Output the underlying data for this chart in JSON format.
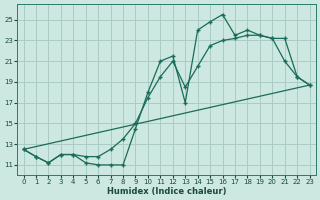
{
  "xlabel": "Humidex (Indice chaleur)",
  "bg_color": "#cce8e0",
  "grid_color": "#aaccc4",
  "line_color": "#1a6b5a",
  "xlim": [
    -0.5,
    23.5
  ],
  "ylim": [
    10.0,
    26.5
  ],
  "xticks": [
    0,
    1,
    2,
    3,
    4,
    5,
    6,
    7,
    8,
    9,
    10,
    11,
    12,
    13,
    14,
    15,
    16,
    17,
    18,
    19,
    20,
    21,
    22,
    23
  ],
  "yticks": [
    11,
    13,
    15,
    17,
    19,
    21,
    23,
    25
  ],
  "series1_x": [
    0,
    1,
    2,
    3,
    4,
    5,
    6,
    7,
    8,
    9,
    10,
    11,
    12,
    13,
    14,
    15,
    16,
    17,
    18,
    19,
    20,
    21,
    22,
    23
  ],
  "series1_y": [
    12.5,
    11.8,
    11.2,
    12.0,
    12.0,
    11.2,
    11.0,
    11.0,
    11.0,
    14.5,
    18.0,
    21.0,
    21.5,
    17.0,
    24.0,
    24.8,
    25.5,
    23.5,
    24.0,
    23.5,
    23.2,
    21.0,
    19.5,
    18.7
  ],
  "series2_x": [
    0,
    1,
    2,
    3,
    4,
    5,
    6,
    7,
    8,
    9,
    10,
    11,
    12,
    13,
    14,
    15,
    16,
    17,
    18,
    19,
    20,
    21,
    22,
    23
  ],
  "series2_y": [
    12.5,
    11.8,
    11.2,
    12.0,
    12.0,
    11.8,
    11.8,
    12.5,
    13.5,
    15.0,
    17.5,
    19.5,
    21.0,
    18.5,
    20.5,
    22.5,
    23.0,
    23.2,
    23.5,
    23.5,
    23.2,
    23.2,
    19.5,
    18.7
  ],
  "series3_x": [
    0,
    23
  ],
  "series3_y": [
    12.5,
    18.7
  ]
}
